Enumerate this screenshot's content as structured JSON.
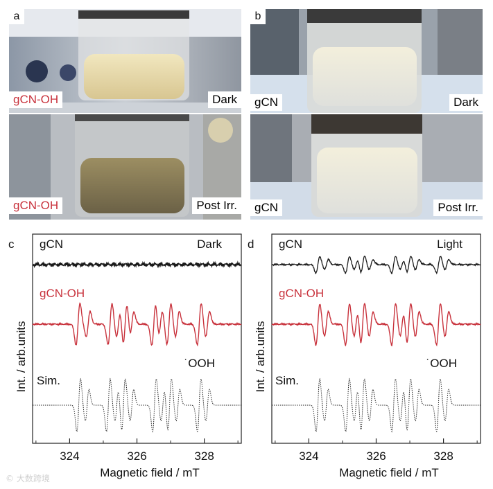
{
  "photos": {
    "a": {
      "letter": "a",
      "top_left_label": "gCN-OH",
      "top_right_label": "Dark",
      "bottom_left_label": "gCN-OH",
      "bottom_right_label": "Post Irr."
    },
    "b": {
      "letter": "b",
      "top_left_label": "gCN",
      "top_right_label": "Dark",
      "bottom_left_label": "gCN",
      "bottom_right_label": "Post Irr."
    }
  },
  "colors": {
    "black_trace": "#1a1a1a",
    "red_trace": "#c8323c",
    "sim_trace": "#222222",
    "label_red": "#c8323c"
  },
  "watermark": "© 大数跨境",
  "chart_data": [
    {
      "type": "line",
      "panel": "c",
      "xlabel": "Magnetic field / mT",
      "ylabel": "Int. / arb.units",
      "xlim": [
        322.9,
        329.1
      ],
      "xticks": [
        324,
        326,
        328
      ],
      "series": [
        {
          "name": "gCN",
          "condition": "Dark",
          "kind": "noise"
        },
        {
          "name": "gCN-OH",
          "kind": "spectrum",
          "lines": [
            324.25,
            324.55,
            325.2,
            325.45,
            325.65,
            325.85,
            326.5,
            326.7,
            326.95,
            327.2,
            327.85,
            328.1
          ]
        },
        {
          "name": "Sim.",
          "annotation": "˙OOH",
          "kind": "sim",
          "lines": [
            324.27,
            324.52,
            325.15,
            325.4,
            325.6,
            325.85,
            326.52,
            326.77,
            326.97,
            327.22,
            327.85,
            328.1
          ]
        }
      ]
    },
    {
      "type": "line",
      "panel": "d",
      "xlabel": "Magnetic field / mT",
      "ylabel": "Int. / arb.units",
      "xlim": [
        322.9,
        329.1
      ],
      "xticks": [
        324,
        326,
        328
      ],
      "series": [
        {
          "name": "gCN",
          "condition": "Light",
          "kind": "spectrum-small",
          "lines": [
            324.27,
            324.52,
            325.15,
            325.4,
            325.6,
            325.85,
            326.52,
            326.77,
            326.97,
            327.22,
            327.85,
            328.1
          ]
        },
        {
          "name": "gCN-OH",
          "kind": "spectrum",
          "lines": [
            324.27,
            324.52,
            325.15,
            325.4,
            325.6,
            325.85,
            326.52,
            326.77,
            326.97,
            327.22,
            327.85,
            328.1
          ]
        },
        {
          "name": "Sim.",
          "annotation": "˙OOH",
          "kind": "sim",
          "lines": [
            324.27,
            324.52,
            325.15,
            325.4,
            325.6,
            325.85,
            326.52,
            326.77,
            326.97,
            327.22,
            327.85,
            328.1
          ]
        }
      ]
    }
  ]
}
